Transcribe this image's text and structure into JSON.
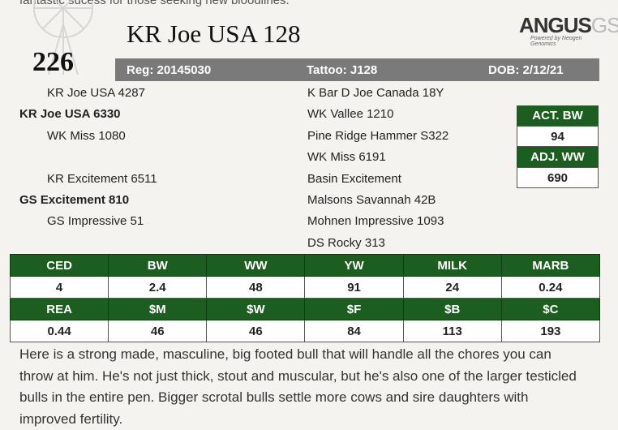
{
  "header_fragment": "fantastic sucess for those seeking new bloodlines.",
  "lot_number": "226",
  "bull_name": "KR Joe USA 128",
  "logo": {
    "brand_main": "ANGUS",
    "brand_suffix": "GS",
    "tagline": "Powered by Neogen Genomics"
  },
  "info": {
    "reg": "Reg: 20145030",
    "tattoo": "Tattoo: J128",
    "dob": "DOB: 2/12/21"
  },
  "pedigree": {
    "sire_sire": "KR Joe USA 4287",
    "sire": "KR Joe USA 6330",
    "sire_dam": "WK Miss 1080",
    "dam_sire": "KR Excitement 6511",
    "dam": "GS Excitement 810",
    "dam_dam": "GS Impressive 51",
    "right": [
      "K Bar D Joe Canada 18Y",
      "WK Vallee 1210",
      "Pine Ridge Hammer S322",
      "WK Miss 6191",
      "Basin Excitement",
      "Malsons Savannah 42B",
      "Mohnen Impressive 1093",
      "DS Rocky 313"
    ]
  },
  "weights": {
    "act_bw_label": "ACT. BW",
    "act_bw_value": "94",
    "adj_ww_label": "ADJ. WW",
    "adj_ww_value": "690"
  },
  "epd_row1": {
    "headers": [
      "CED",
      "BW",
      "WW",
      "YW",
      "MILK",
      "MARB"
    ],
    "values": [
      "4",
      "2.4",
      "48",
      "91",
      "24",
      "0.24"
    ]
  },
  "epd_row2": {
    "headers": [
      "REA",
      "$M",
      "$W",
      "$F",
      "$B",
      "$C"
    ],
    "values": [
      "0.44",
      "46",
      "46",
      "84",
      "113",
      "193"
    ]
  },
  "description": "Here is a strong made, masculine, big footed bull that will handle all the chores you can throw at him. He's not just thick, stout and muscular, but he's also one of the larger testicled bulls in the entire pen. Bigger scrotal bulls settle more cows and sire daughters with improved fertility."
}
